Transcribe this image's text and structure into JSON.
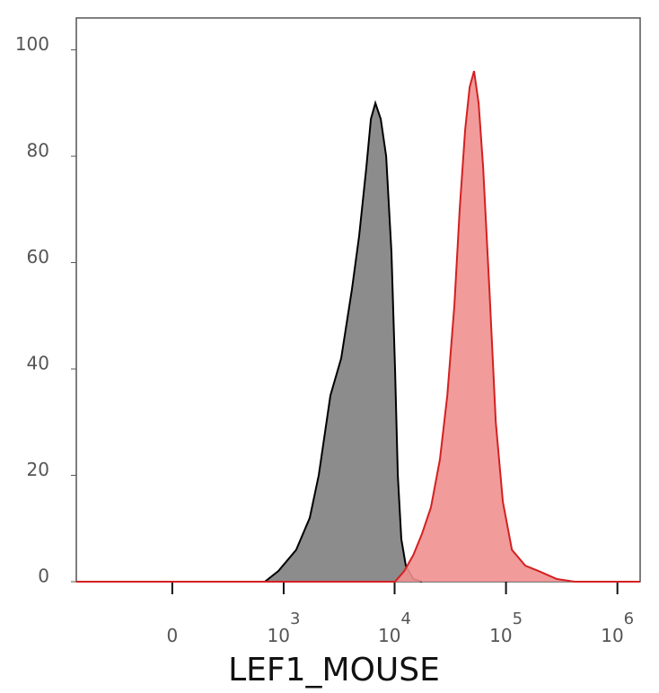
{
  "chart_data": {
    "type": "area",
    "x_label": "LEF1_MOUSE",
    "xscale": "asinh",
    "xlim": [
      -720,
      1600000
    ],
    "xticks": [
      0,
      {
        "value": 1000,
        "label": "10",
        "sup": "3"
      },
      {
        "value": 10000,
        "label": "10",
        "sup": "4"
      },
      {
        "value": 100000,
        "label": "10",
        "sup": "5"
      },
      {
        "value": 1000000,
        "label": "10",
        "sup": "6"
      }
    ],
    "ylim": [
      0,
      106
    ],
    "yticks": [
      0,
      20,
      40,
      60,
      80,
      100
    ],
    "series": [
      {
        "color": "#000000",
        "fill": "#808080",
        "x": [
          -720,
          670,
          893,
          1300,
          1725,
          2080,
          2650,
          3310,
          4140,
          4800,
          5580,
          6120,
          6720,
          7510,
          8390,
          9370,
          10100,
          10680,
          11500,
          12600,
          14700,
          17600
        ],
        "values": [
          0,
          0,
          2,
          6,
          12,
          20,
          35,
          42,
          55,
          65,
          78,
          87,
          90,
          87,
          80,
          62,
          40,
          20,
          8,
          3,
          0.5,
          0
        ]
      },
      {
        "color": "#d42020",
        "fill": "#f09090",
        "x": [
          -720,
          10100,
          12200,
          14700,
          17600,
          21200,
          25500,
          29700,
          34400,
          38400,
          43000,
          47200,
          51700,
          56800,
          62300,
          71000,
          80900,
          93800,
          113000,
          149000,
          197000,
          286000,
          414000,
          1600000
        ],
        "values": [
          0,
          0,
          2,
          5,
          9,
          14,
          23,
          35,
          52,
          70,
          85,
          93,
          96,
          90,
          78,
          55,
          30,
          15,
          6,
          3,
          2,
          0.5,
          0,
          0
        ]
      }
    ]
  }
}
